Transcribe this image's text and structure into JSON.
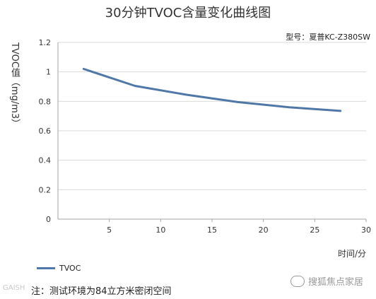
{
  "chart_data": {
    "type": "line",
    "title": "30分钟TVOC含量变化曲线图",
    "model_label": "型号：夏普KC-Z380SW",
    "ylabel": "TVOC值（mg/m3）",
    "xlabel": "时间/分",
    "xlim": [
      0,
      30
    ],
    "ylim": [
      0,
      1.2
    ],
    "x_ticks": [
      "5",
      "10",
      "15",
      "20",
      "25",
      "30"
    ],
    "y_ticks": [
      "0",
      "0.2",
      "0.4",
      "0.6",
      "0.8",
      "1",
      "1.2"
    ],
    "grid": true,
    "legend_position": "bottom-left",
    "series": [
      {
        "name": "TVOC",
        "color": "#4f77a8",
        "x": [
          2.5,
          7.5,
          12.5,
          17.5,
          22.5,
          27.5
        ],
        "values": [
          1.02,
          0.905,
          0.845,
          0.795,
          0.76,
          0.735
        ]
      }
    ]
  },
  "note": "注：测试环境为84立方米密闭空间",
  "watermark_right": "搜狐焦点家居",
  "watermark_left": "GAISH"
}
